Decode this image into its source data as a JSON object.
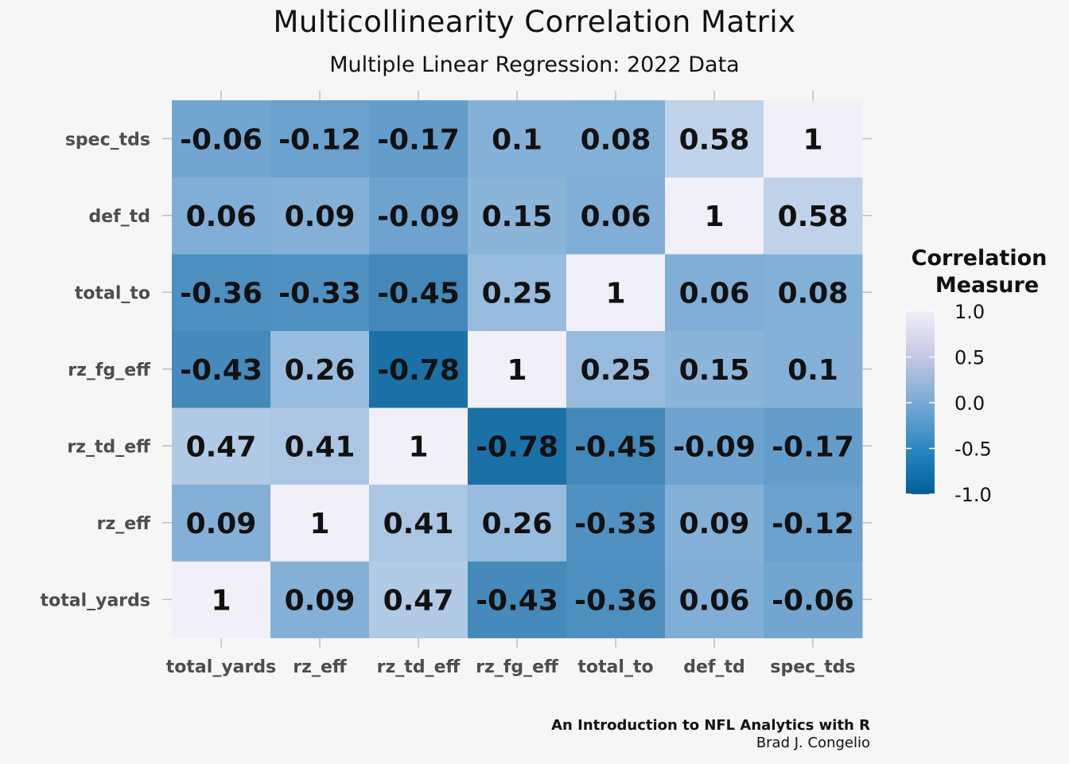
{
  "chart_data": {
    "type": "heatmap",
    "title": "Multicollinearity Correlation Matrix",
    "subtitle": "Multiple Linear Regression: 2022 Data",
    "x_categories": [
      "total_yards",
      "rz_eff",
      "rz_td_eff",
      "rz_fg_eff",
      "total_to",
      "def_td",
      "spec_tds"
    ],
    "y_categories": [
      "total_yards",
      "rz_eff",
      "rz_td_eff",
      "rz_fg_eff",
      "total_to",
      "def_td",
      "spec_tds"
    ],
    "values": [
      [
        1,
        0.09,
        0.47,
        -0.43,
        -0.36,
        0.06,
        -0.06
      ],
      [
        0.09,
        1,
        0.41,
        0.26,
        -0.33,
        0.09,
        -0.12
      ],
      [
        0.47,
        0.41,
        1,
        -0.78,
        -0.45,
        -0.09,
        -0.17
      ],
      [
        -0.43,
        0.26,
        -0.78,
        1,
        0.25,
        0.15,
        0.1
      ],
      [
        -0.36,
        -0.33,
        -0.45,
        0.25,
        1,
        0.06,
        0.08
      ],
      [
        0.06,
        0.09,
        -0.09,
        0.15,
        0.06,
        1,
        0.58
      ],
      [
        -0.06,
        -0.12,
        -0.17,
        0.1,
        0.08,
        0.58,
        1
      ]
    ],
    "legend": {
      "title_line1": "Correlation",
      "title_line2": "Measure",
      "ticks": [
        "1.0",
        "0.5",
        "0.0",
        "-0.5",
        "-1.0"
      ],
      "range": [
        -1,
        1
      ],
      "placement": "right"
    },
    "colors": {
      "low": "#005f99",
      "mid": "#79aad4",
      "high": "#f1eff8"
    }
  },
  "caption": {
    "line1": "An Introduction to NFL Analytics with R",
    "line2": "Brad J. Congelio"
  }
}
